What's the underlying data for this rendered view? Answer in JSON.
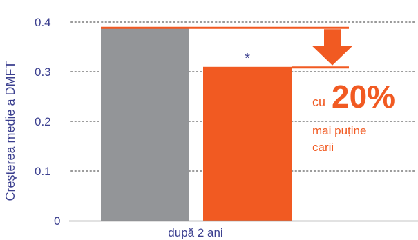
{
  "chart_data": {
    "type": "bar",
    "ylabel": "Creșterea medie a DMFT",
    "xlabel": "",
    "categories": [
      "după 2 ani"
    ],
    "ylim": [
      0,
      0.4
    ],
    "y_ticks": [
      "0",
      "0.1",
      "0.2",
      "0.3",
      "0.4"
    ],
    "grid": true,
    "series": [
      {
        "values": [
          0.39
        ]
      },
      {
        "values": [
          0.31
        ]
      }
    ],
    "significance_marker": "*",
    "annotation": {
      "prefix": "cu",
      "value": "20%",
      "line1": "mai puține",
      "line2": "carii"
    },
    "colors": {
      "gray": "#939598",
      "orange": "#f15a22",
      "axis_text": "#3b3f8f",
      "grid": "#9a9a9a"
    }
  }
}
